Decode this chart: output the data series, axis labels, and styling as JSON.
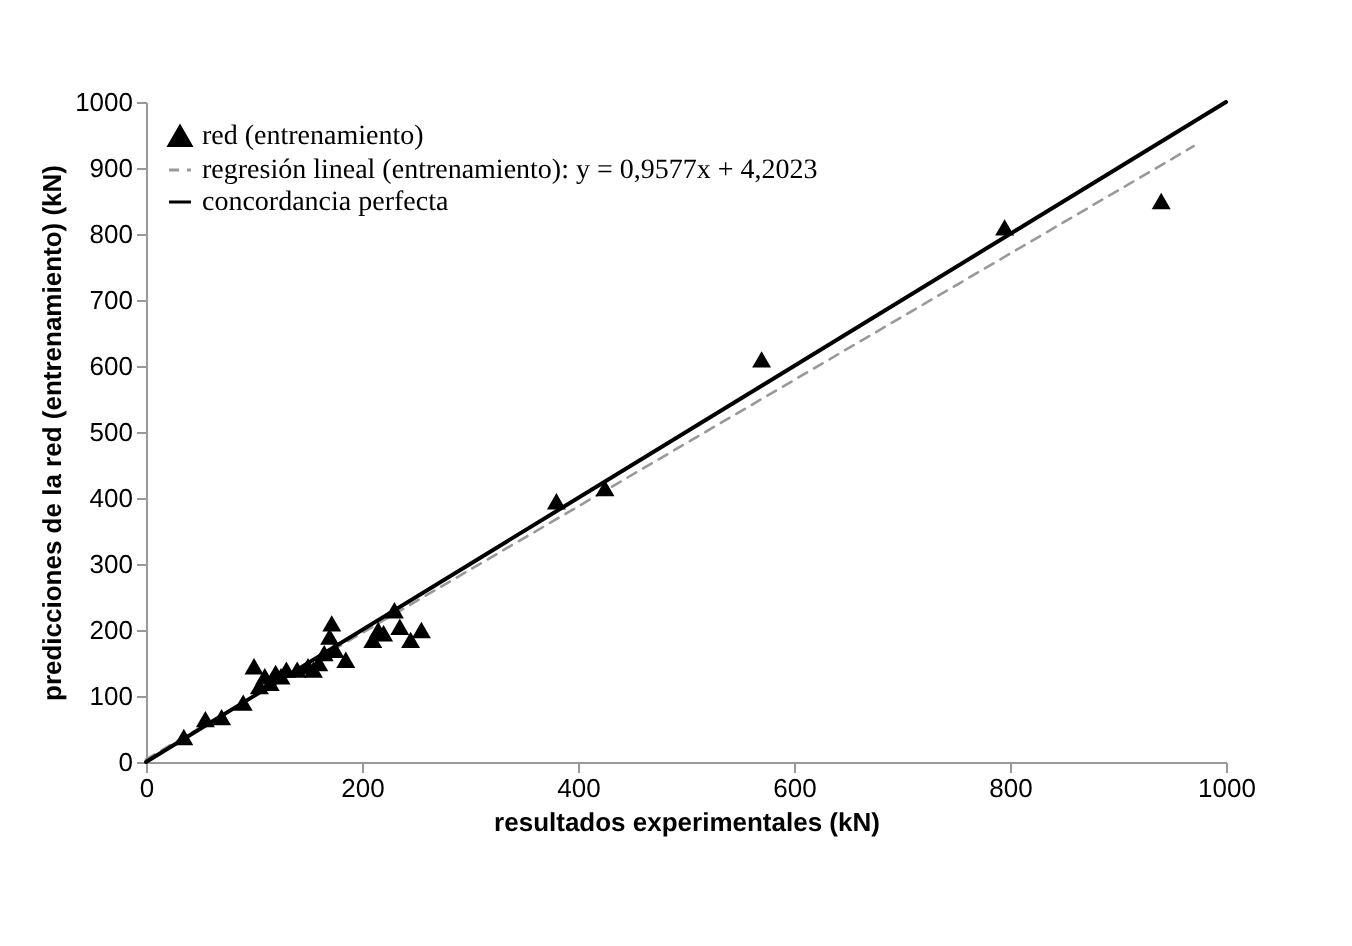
{
  "chart_data": {
    "type": "scatter",
    "xlabel": "resultados experimentales (kN)",
    "ylabel": "predicciones de la red (entrenamiento) (kN)",
    "xlim": [
      0,
      1000
    ],
    "xticks": [
      0,
      200,
      400,
      600,
      800,
      1000
    ],
    "ylim": [
      0,
      1000
    ],
    "yticks": [
      0,
      100,
      200,
      300,
      400,
      500,
      600,
      700,
      800,
      900,
      1000
    ],
    "grid": false,
    "legend": "top left",
    "series": [
      {
        "name": "red (entrenamiento)",
        "marker": "triangle",
        "color": "#000000",
        "x": [
          35,
          55,
          70,
          90,
          100,
          105,
          110,
          115,
          120,
          125,
          130,
          140,
          150,
          155,
          160,
          165,
          170,
          172,
          175,
          185,
          210,
          215,
          220,
          230,
          235,
          245,
          255,
          380,
          425,
          570,
          795,
          940
        ],
        "values": [
          38,
          65,
          68,
          90,
          145,
          115,
          130,
          120,
          135,
          130,
          140,
          140,
          145,
          140,
          150,
          165,
          190,
          210,
          170,
          155,
          185,
          200,
          195,
          230,
          205,
          185,
          200,
          395,
          415,
          610,
          810,
          850
        ]
      },
      {
        "name": "regresión lineal (entrenamiento): y = 0,9577x + 4,2023",
        "type": "line",
        "line_style": "dashed",
        "color": "#999999",
        "x": [
          0,
          970
        ],
        "values": [
          4,
          933
        ]
      },
      {
        "name": "concordancia perfecta",
        "type": "line",
        "line_style": "solid",
        "color": "#000000",
        "x": [
          0,
          1000
        ],
        "values": [
          0,
          1000
        ]
      }
    ]
  }
}
